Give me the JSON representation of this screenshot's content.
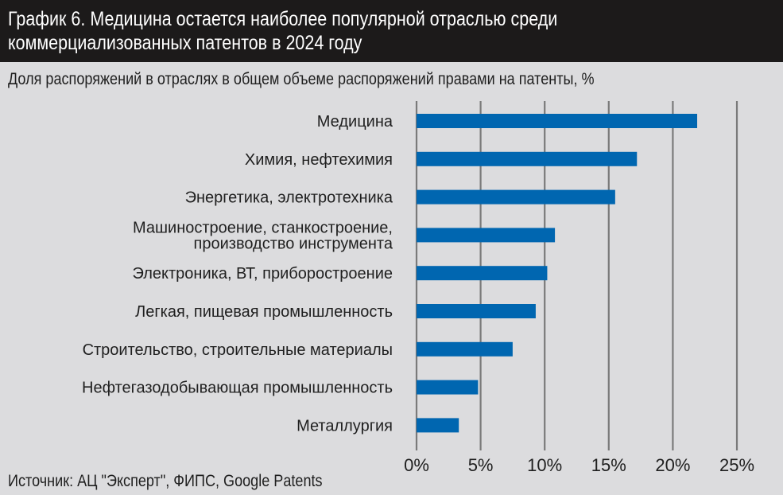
{
  "title_line1": "График 6. Медицина остается наиболее популярной отраслью среди",
  "title_line2": "коммерциализованных патентов в 2024 году",
  "source": "Источник: АЦ \"Эксперт\", ФИПС, Google Patents",
  "chart_data": {
    "type": "bar",
    "orientation": "horizontal",
    "title": "График 6. Медицина остается наиболее популярной отраслью среди коммерциализованных патентов в 2024 году",
    "subtitle": "Доля распоряжений в отраслях в общем объеме распоряжений правами на патенты, %",
    "categories": [
      [
        "Медицина"
      ],
      [
        "Химия, нефтехимия"
      ],
      [
        "Энергетика, электротехника"
      ],
      [
        "Машиностроение, станкостроение,",
        "производство инструмента"
      ],
      [
        "Электроника, ВТ, приборостроение"
      ],
      [
        "Легкая, пищевая промышленность"
      ],
      [
        "Строительство, строительные материалы"
      ],
      [
        "Нефтегазодобывающая промышленность"
      ],
      [
        "Металлургия"
      ]
    ],
    "values": [
      21.9,
      17.2,
      15.5,
      10.8,
      10.2,
      9.3,
      7.5,
      4.8,
      3.3
    ],
    "xlim": [
      0,
      25
    ],
    "xticks": [
      0,
      5,
      10,
      15,
      20,
      25
    ],
    "xtick_labels": [
      "0%",
      "5%",
      "10%",
      "15%",
      "20%",
      "25%"
    ],
    "grid": true,
    "bar_color": "#0066b0",
    "grid_color": "#7a7a7a"
  }
}
